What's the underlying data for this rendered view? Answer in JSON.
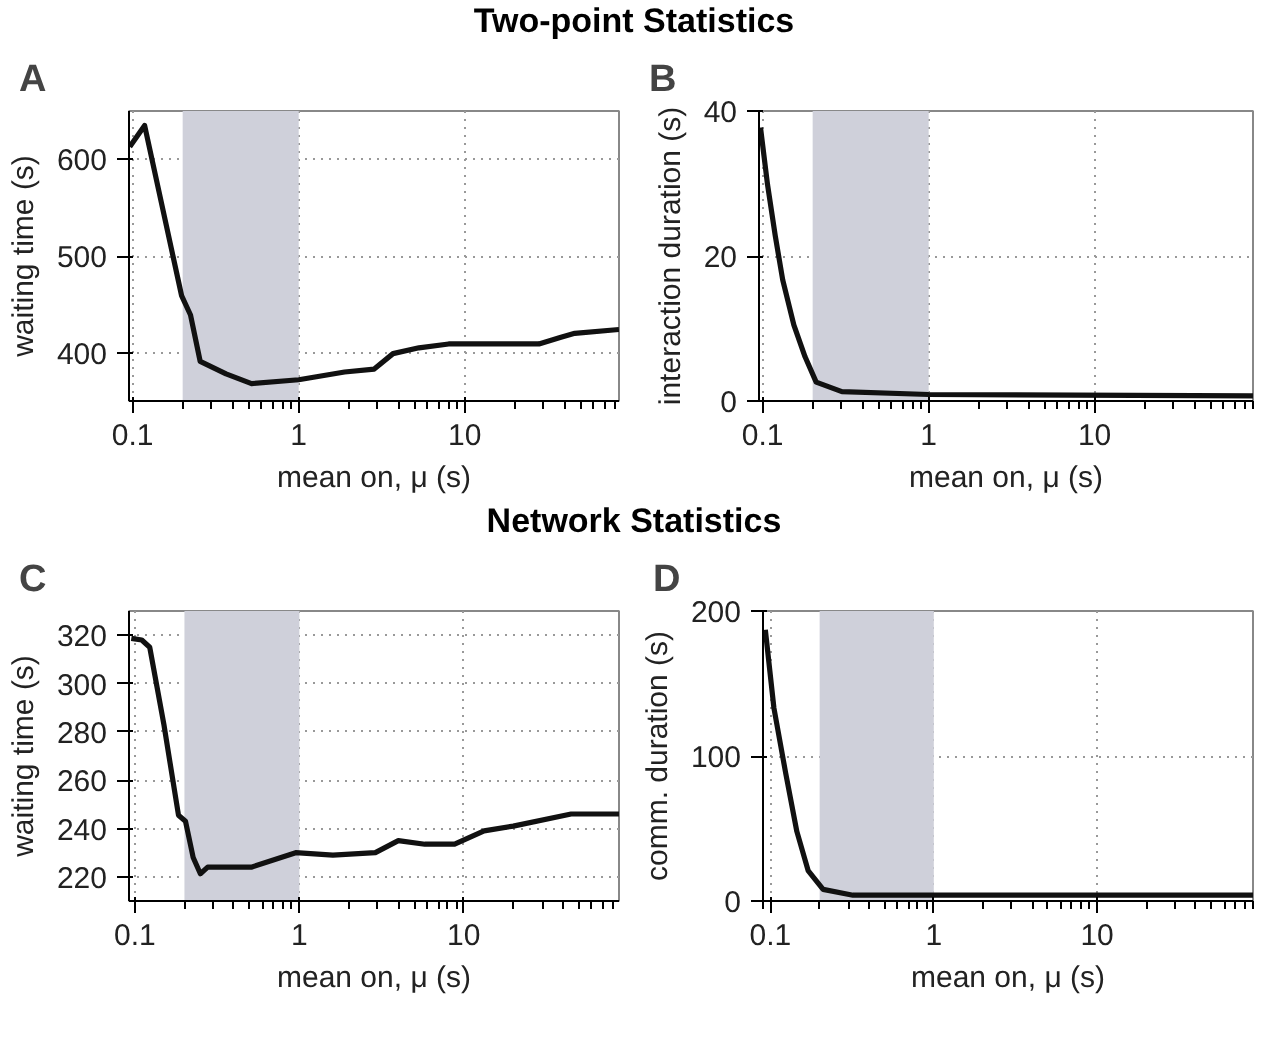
{
  "chart_data": [
    {
      "type": "line",
      "title": "Two-point Statistics",
      "annotations": [
        "A"
      ],
      "xlabel": "mean on, μ (s)",
      "ylabel": "waiting time (s)",
      "log": "x",
      "grid": true,
      "xlim": [
        0.095,
        85
      ],
      "xticks": [
        0.1,
        1,
        10
      ],
      "ylim": [
        350,
        650
      ],
      "yticks": [
        400,
        500,
        600
      ],
      "bands": [
        {
          "axis": "x",
          "from": 0.2,
          "to": 1,
          "color": "#cfd0da"
        }
      ],
      "series": [
        {
          "color": "#111111",
          "x": [
            0.096,
            0.118,
            0.197,
            0.223,
            0.255,
            0.365,
            0.52,
            1,
            1.89,
            2.85,
            3.7,
            5.3,
            8,
            10,
            28,
            38,
            46,
            85
          ],
          "values": [
            613,
            635,
            459,
            439,
            391,
            378,
            368,
            372,
            380,
            383,
            399,
            405,
            409,
            409,
            409,
            416,
            420,
            424
          ]
        }
      ]
    },
    {
      "type": "line",
      "annotations": [
        "B"
      ],
      "xlabel": "mean on, μ (s)",
      "ylabel": "interaction duration (s)",
      "log": "x",
      "grid": true,
      "xlim": [
        0.095,
        90
      ],
      "xticks": [
        0.1,
        1,
        10
      ],
      "ylim": [
        0,
        40
      ],
      "yticks": [
        0,
        20,
        40
      ],
      "bands": [
        {
          "axis": "x",
          "from": 0.2,
          "to": 1,
          "color": "#cfd0da"
        }
      ],
      "series": [
        {
          "color": "#111111",
          "x": [
            0.097,
            0.107,
            0.119,
            0.132,
            0.154,
            0.18,
            0.21,
            0.3,
            1,
            90
          ],
          "values": [
            37.7,
            29.8,
            22.8,
            16.7,
            10.5,
            6.1,
            2.6,
            1.3,
            0.9,
            0.7
          ]
        }
      ]
    },
    {
      "type": "line",
      "title": "Network Statistics",
      "annotations": [
        "C"
      ],
      "xlabel": "mean on, μ (s)",
      "ylabel": "waiting time (s)",
      "log": "x",
      "grid": true,
      "xlim": [
        0.092,
        88
      ],
      "xticks": [
        0.1,
        1,
        10
      ],
      "ylim": [
        210,
        330
      ],
      "yticks": [
        220,
        240,
        260,
        280,
        300,
        320
      ],
      "bands": [
        {
          "axis": "x",
          "from": 0.2,
          "to": 1,
          "color": "#cfd0da"
        }
      ],
      "series": [
        {
          "color": "#111111",
          "x": [
            0.095,
            0.11,
            0.123,
            0.15,
            0.184,
            0.203,
            0.226,
            0.25,
            0.277,
            0.51,
            0.95,
            1.6,
            2.9,
            4,
            5.8,
            8.8,
            13.3,
            20,
            45,
            88
          ],
          "values": [
            318.7,
            318,
            315,
            283,
            245.5,
            243,
            228,
            221.3,
            224,
            224,
            230,
            229,
            230,
            235,
            233.5,
            233.5,
            239,
            241,
            246,
            246
          ]
        }
      ]
    },
    {
      "type": "line",
      "annotations": [
        "D"
      ],
      "xlabel": "mean on, μ (s)",
      "ylabel": "comm. duration (s)",
      "log": "x",
      "grid": true,
      "xlim": [
        0.09,
        90
      ],
      "xticks": [
        0.1,
        1,
        10
      ],
      "ylim": [
        0,
        200
      ],
      "yticks": [
        0,
        100,
        200
      ],
      "bands": [
        {
          "axis": "x",
          "from": 0.2,
          "to": 1,
          "color": "#cfd0da"
        }
      ],
      "series": [
        {
          "color": "#111111",
          "x": [
            0.093,
            0.105,
            0.124,
            0.145,
            0.17,
            0.21,
            0.32,
            1,
            90
          ],
          "values": [
            187,
            133,
            88,
            48,
            21,
            8,
            4,
            4,
            4
          ]
        }
      ]
    }
  ]
}
